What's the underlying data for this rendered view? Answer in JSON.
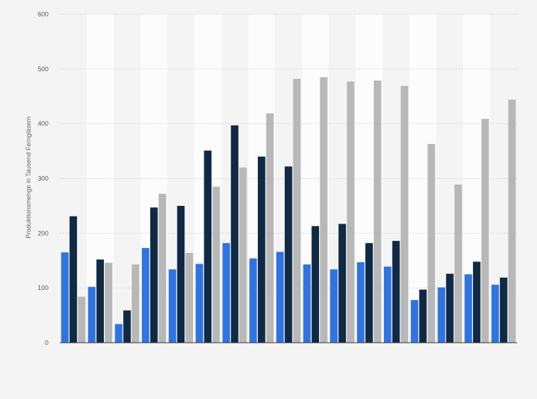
{
  "chart_data": {
    "type": "bar",
    "ylabel": "Produktionsmenge in Tausend Ferngläsern",
    "xlabel": "",
    "ylim": [
      0,
      600
    ],
    "yticks": [
      0,
      100,
      200,
      300,
      400,
      500,
      600
    ],
    "grid": true,
    "legend": "none",
    "category_count": 17,
    "series": [
      {
        "color": "#2f74e0",
        "values": [
          165,
          102,
          34,
          173,
          134,
          144,
          182,
          154,
          166,
          143,
          134,
          147,
          139,
          78,
          101,
          125,
          106
        ]
      },
      {
        "color": "#102a45",
        "values": [
          231,
          152,
          59,
          247,
          250,
          351,
          397,
          340,
          322,
          213,
          217,
          182,
          186,
          97,
          126,
          148,
          119
        ]
      },
      {
        "color": "#b8b8b8",
        "values": [
          84,
          146,
          143,
          272,
          164,
          285,
          320,
          419,
          482,
          485,
          477,
          479,
          469,
          363,
          289,
          409,
          444
        ]
      }
    ]
  }
}
